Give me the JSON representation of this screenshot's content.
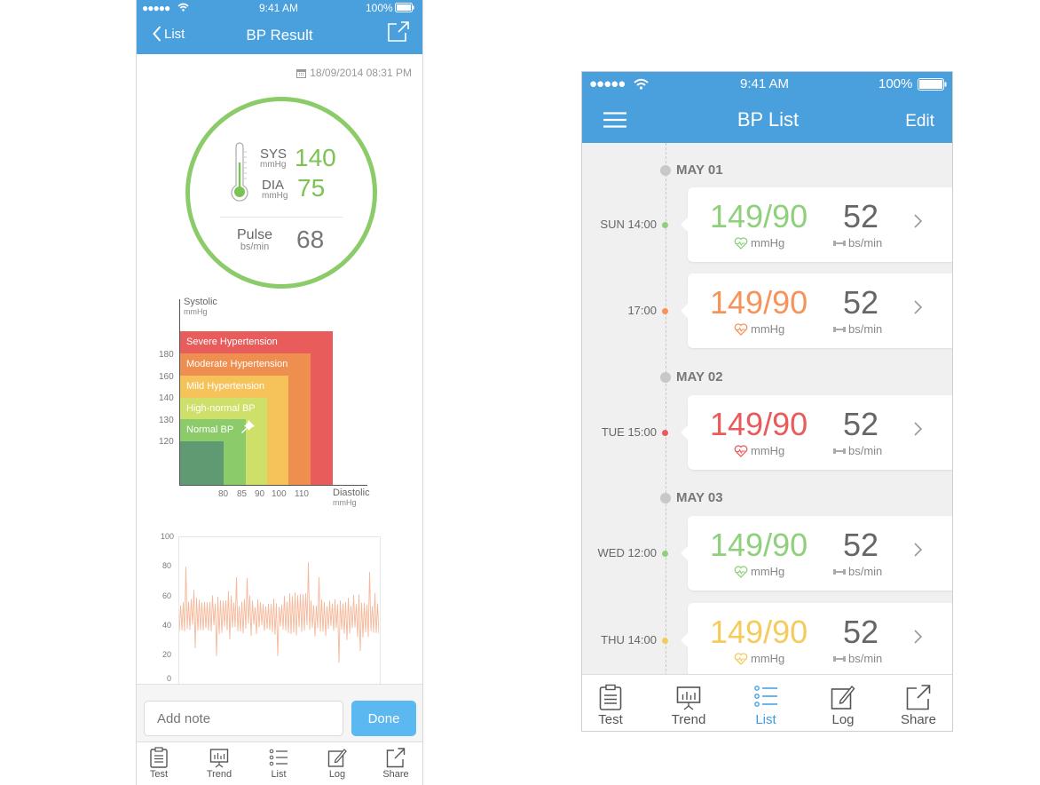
{
  "result_screen": {
    "status_bar": {
      "signal": "●●●●●",
      "time": "9:41 AM",
      "battery": "100%"
    },
    "nav": {
      "back_label": "List",
      "title": "BP Result",
      "share_icon": "share-icon"
    },
    "datetime": "18/09/2014  08:31 PM",
    "reading": {
      "sys_label": "SYS",
      "sys_unit": "mmHg",
      "sys_value": "140",
      "dia_label": "DIA",
      "dia_unit": "mmHg",
      "dia_value": "75",
      "pulse_label": "Pulse",
      "pulse_unit": "bs/min",
      "pulse_value": "68",
      "ring_color": "#8ccb6a"
    },
    "classification_chart": {
      "y_label": "Systolic",
      "y_unit": "mmHg",
      "x_label": "Diastolic",
      "x_unit": "mmHg",
      "y_ticks": [
        "180",
        "160",
        "140",
        "130",
        "120"
      ],
      "x_ticks": [
        "80",
        "85",
        "90",
        "100",
        "110"
      ],
      "zones": [
        {
          "name": "Severe Hypertension",
          "color": "#e85c5c"
        },
        {
          "name": "Moderate Hypertension",
          "color": "#ef8f4f"
        },
        {
          "name": "Mild Hypertension",
          "color": "#f6c35b"
        },
        {
          "name": "High-normal BP",
          "color": "#cfe06a"
        },
        {
          "name": "Normal BP",
          "color": "#8ccb6a"
        },
        {
          "name": "",
          "color": "#5f9a73"
        }
      ]
    },
    "wave_chart": {
      "y_ticks": [
        "100",
        "80",
        "60",
        "40",
        "20",
        "0"
      ],
      "line_color": "#f5b89a"
    },
    "note": {
      "placeholder": "Add note",
      "done_label": "Done"
    },
    "tabs": [
      {
        "label": "Test",
        "icon": "clipboard-icon"
      },
      {
        "label": "Trend",
        "icon": "chart-board-icon"
      },
      {
        "label": "List",
        "icon": "list-icon"
      },
      {
        "label": "Log",
        "icon": "edit-icon"
      },
      {
        "label": "Share",
        "icon": "share-icon"
      }
    ]
  },
  "list_screen": {
    "status_bar": {
      "signal": "●●●●●",
      "time": "9:41 AM",
      "battery": "100%"
    },
    "nav": {
      "title": "BP List",
      "edit_label": "Edit",
      "menu_icon": "hamburger-icon"
    },
    "days": [
      {
        "label": "MAY 01"
      },
      {
        "label": "MAY 02"
      },
      {
        "label": "MAY 03"
      }
    ],
    "entries": [
      {
        "time": "SUN 14:00",
        "bp": "149/90",
        "bp_unit": "mmHg",
        "pulse": "52",
        "pulse_unit": "bs/min",
        "color": "#8ed07b"
      },
      {
        "time": "17:00",
        "bp": "149/90",
        "bp_unit": "mmHg",
        "pulse": "52",
        "pulse_unit": "bs/min",
        "color": "#f5935a"
      },
      {
        "time": "TUE  15:00",
        "bp": "149/90",
        "bp_unit": "mmHg",
        "pulse": "52",
        "pulse_unit": "bs/min",
        "color": "#ea5a5a"
      },
      {
        "time": "WED  12:00",
        "bp": "149/90",
        "bp_unit": "mmHg",
        "pulse": "52",
        "pulse_unit": "bs/min",
        "color": "#8ed07b"
      },
      {
        "time": "THU  14:00",
        "bp": "149/90",
        "bp_unit": "mmHg",
        "pulse": "52",
        "pulse_unit": "bs/min",
        "color": "#f5cb5c"
      }
    ],
    "tabs": [
      {
        "label": "Test",
        "icon": "clipboard-icon"
      },
      {
        "label": "Trend",
        "icon": "chart-board-icon"
      },
      {
        "label": "List",
        "icon": "list-icon",
        "active": true
      },
      {
        "label": "Log",
        "icon": "edit-icon"
      },
      {
        "label": "Share",
        "icon": "share-icon"
      }
    ],
    "accent_color": "#3a9ee4"
  }
}
